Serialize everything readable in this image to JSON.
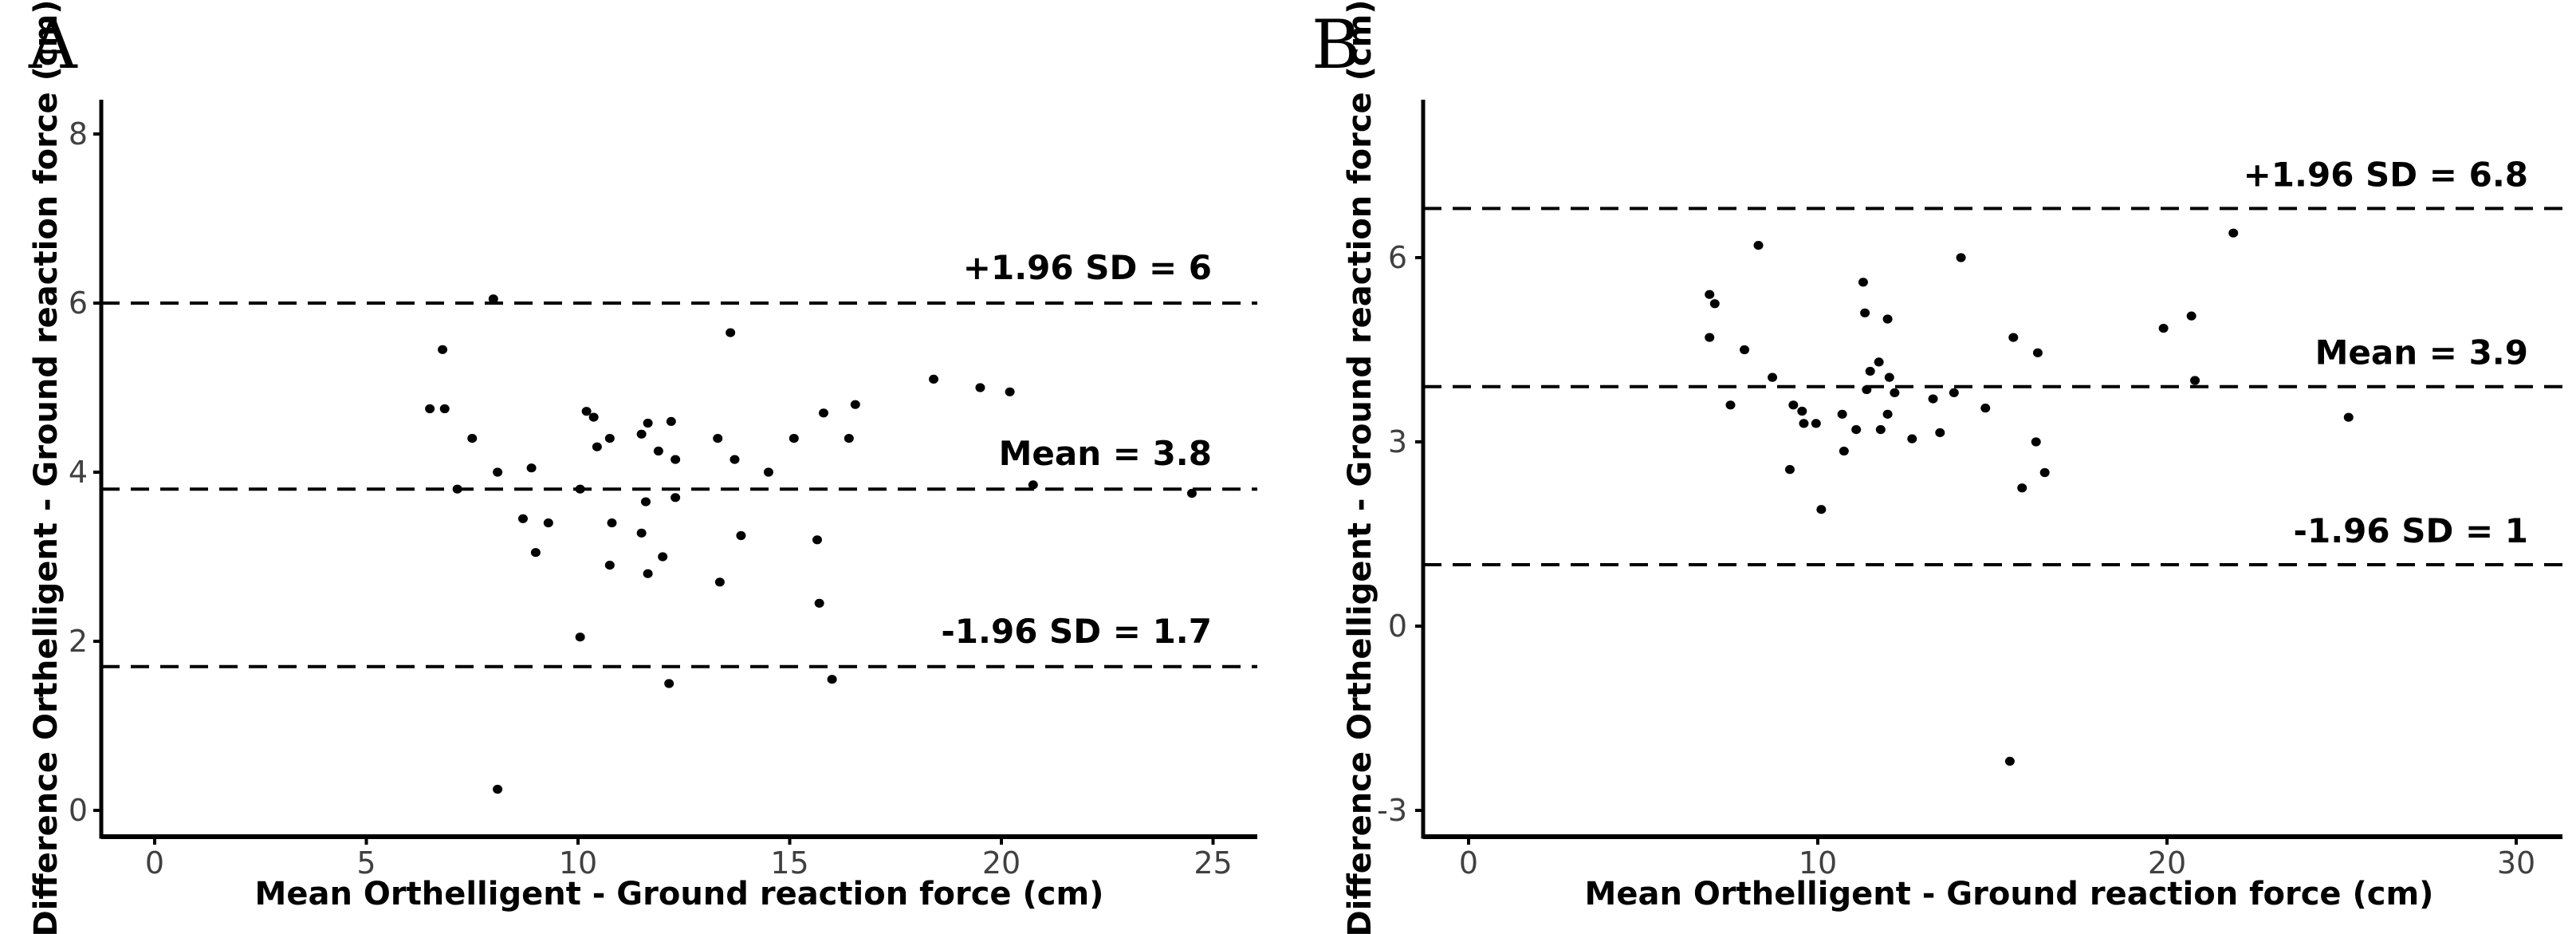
{
  "figure_title": "",
  "colors": {
    "background": "#ffffff",
    "points": "#000000",
    "reference_lines": "#000000",
    "axis_line": "#000000",
    "tick_label_text": "#404040",
    "axis_title_text": "#000000",
    "annotation_text": "#000000"
  },
  "chart_data": [
    {
      "panel_label": "A",
      "type": "scatter",
      "title": "",
      "xlabel": "Mean Orthelligent - Ground reaction force (cm)",
      "ylabel": "Difference Orthelligent - Ground reaction force (cm)",
      "x_ticks": [
        0,
        5,
        10,
        15,
        20,
        25
      ],
      "y_ticks": [
        0,
        2,
        4,
        6,
        8
      ],
      "xlim": [
        -1.25,
        26.0
      ],
      "ylim": [
        -0.31,
        8.4
      ],
      "grid": false,
      "legend": "none",
      "marker": "dot",
      "reference_lines": [
        {
          "label": "+1.96 SD = 6",
          "value": 6.0,
          "style": "dashed"
        },
        {
          "label": "Mean = 3.8",
          "value": 3.8,
          "style": "dashed"
        },
        {
          "label": "-1.96 SD = 1.7",
          "value": 1.7,
          "style": "dashed"
        }
      ],
      "points": [
        [
          8.0,
          6.05
        ],
        [
          6.8,
          5.45
        ],
        [
          13.6,
          5.65
        ],
        [
          6.5,
          4.75
        ],
        [
          6.85,
          4.75
        ],
        [
          7.5,
          4.4
        ],
        [
          18.4,
          5.1
        ],
        [
          19.5,
          5.0
        ],
        [
          20.2,
          4.95
        ],
        [
          10.2,
          4.72
        ],
        [
          10.37,
          4.65
        ],
        [
          10.45,
          4.3
        ],
        [
          10.75,
          4.4
        ],
        [
          11.5,
          4.45
        ],
        [
          11.65,
          4.58
        ],
        [
          12.2,
          4.6
        ],
        [
          11.9,
          4.25
        ],
        [
          12.3,
          4.15
        ],
        [
          13.3,
          4.4
        ],
        [
          13.7,
          4.15
        ],
        [
          14.5,
          4.0
        ],
        [
          15.1,
          4.4
        ],
        [
          15.8,
          4.7
        ],
        [
          16.4,
          4.4
        ],
        [
          16.55,
          4.8
        ],
        [
          8.1,
          4.0
        ],
        [
          8.9,
          4.05
        ],
        [
          7.15,
          3.8
        ],
        [
          10.05,
          3.8
        ],
        [
          20.75,
          3.85
        ],
        [
          24.5,
          3.75
        ],
        [
          11.6,
          3.65
        ],
        [
          12.3,
          3.7
        ],
        [
          8.7,
          3.45
        ],
        [
          9.3,
          3.4
        ],
        [
          10.8,
          3.4
        ],
        [
          11.5,
          3.28
        ],
        [
          9.0,
          3.05
        ],
        [
          12.0,
          3.0
        ],
        [
          10.75,
          2.9
        ],
        [
          11.65,
          2.8
        ],
        [
          13.35,
          2.7
        ],
        [
          13.85,
          3.25
        ],
        [
          15.65,
          3.2
        ],
        [
          15.7,
          2.45
        ],
        [
          10.05,
          2.05
        ],
        [
          12.15,
          1.5
        ],
        [
          16.0,
          1.55
        ],
        [
          8.1,
          0.25
        ]
      ]
    },
    {
      "panel_label": "B",
      "type": "scatter",
      "title": "",
      "xlabel": "Mean Orthelligent - Ground reaction force (cm)",
      "ylabel": "Difference Orthelligent - Ground reaction force (cm)",
      "x_ticks": [
        0,
        10,
        20,
        30
      ],
      "y_ticks": [
        -3,
        0,
        3,
        6
      ],
      "xlim": [
        -1.3,
        31.3
      ],
      "ylim": [
        -3.43,
        8.57
      ],
      "grid": false,
      "legend": "none",
      "marker": "dot",
      "reference_lines": [
        {
          "label": "+1.96 SD = 6.8",
          "value": 6.8,
          "style": "dashed"
        },
        {
          "label": "Mean = 3.9",
          "value": 3.9,
          "style": "dashed"
        },
        {
          "label": "-1.96 SD = 1",
          "value": 1.0,
          "style": "dashed"
        }
      ],
      "points": [
        [
          8.3,
          6.2
        ],
        [
          14.1,
          6.0
        ],
        [
          21.9,
          6.4
        ],
        [
          11.3,
          5.6
        ],
        [
          6.9,
          5.4
        ],
        [
          7.05,
          5.25
        ],
        [
          11.35,
          5.1
        ],
        [
          12.0,
          5.0
        ],
        [
          6.9,
          4.7
        ],
        [
          7.9,
          4.5
        ],
        [
          8.7,
          4.05
        ],
        [
          11.5,
          4.15
        ],
        [
          11.75,
          4.3
        ],
        [
          12.05,
          4.05
        ],
        [
          15.6,
          4.7
        ],
        [
          16.3,
          4.45
        ],
        [
          19.9,
          4.85
        ],
        [
          20.7,
          5.05
        ],
        [
          20.8,
          4.0
        ],
        [
          11.4,
          3.85
        ],
        [
          12.2,
          3.8
        ],
        [
          13.9,
          3.8
        ],
        [
          13.3,
          3.7
        ],
        [
          7.5,
          3.6
        ],
        [
          14.8,
          3.55
        ],
        [
          9.3,
          3.6
        ],
        [
          9.55,
          3.5
        ],
        [
          9.6,
          3.3
        ],
        [
          9.95,
          3.3
        ],
        [
          10.7,
          3.45
        ],
        [
          12.0,
          3.45
        ],
        [
          11.1,
          3.2
        ],
        [
          11.8,
          3.2
        ],
        [
          12.7,
          3.05
        ],
        [
          13.5,
          3.15
        ],
        [
          10.75,
          2.85
        ],
        [
          9.2,
          2.55
        ],
        [
          16.25,
          3.0
        ],
        [
          16.5,
          2.5
        ],
        [
          15.85,
          2.25
        ],
        [
          10.1,
          1.9
        ],
        [
          25.2,
          3.4
        ],
        [
          15.5,
          -2.2
        ]
      ]
    }
  ]
}
